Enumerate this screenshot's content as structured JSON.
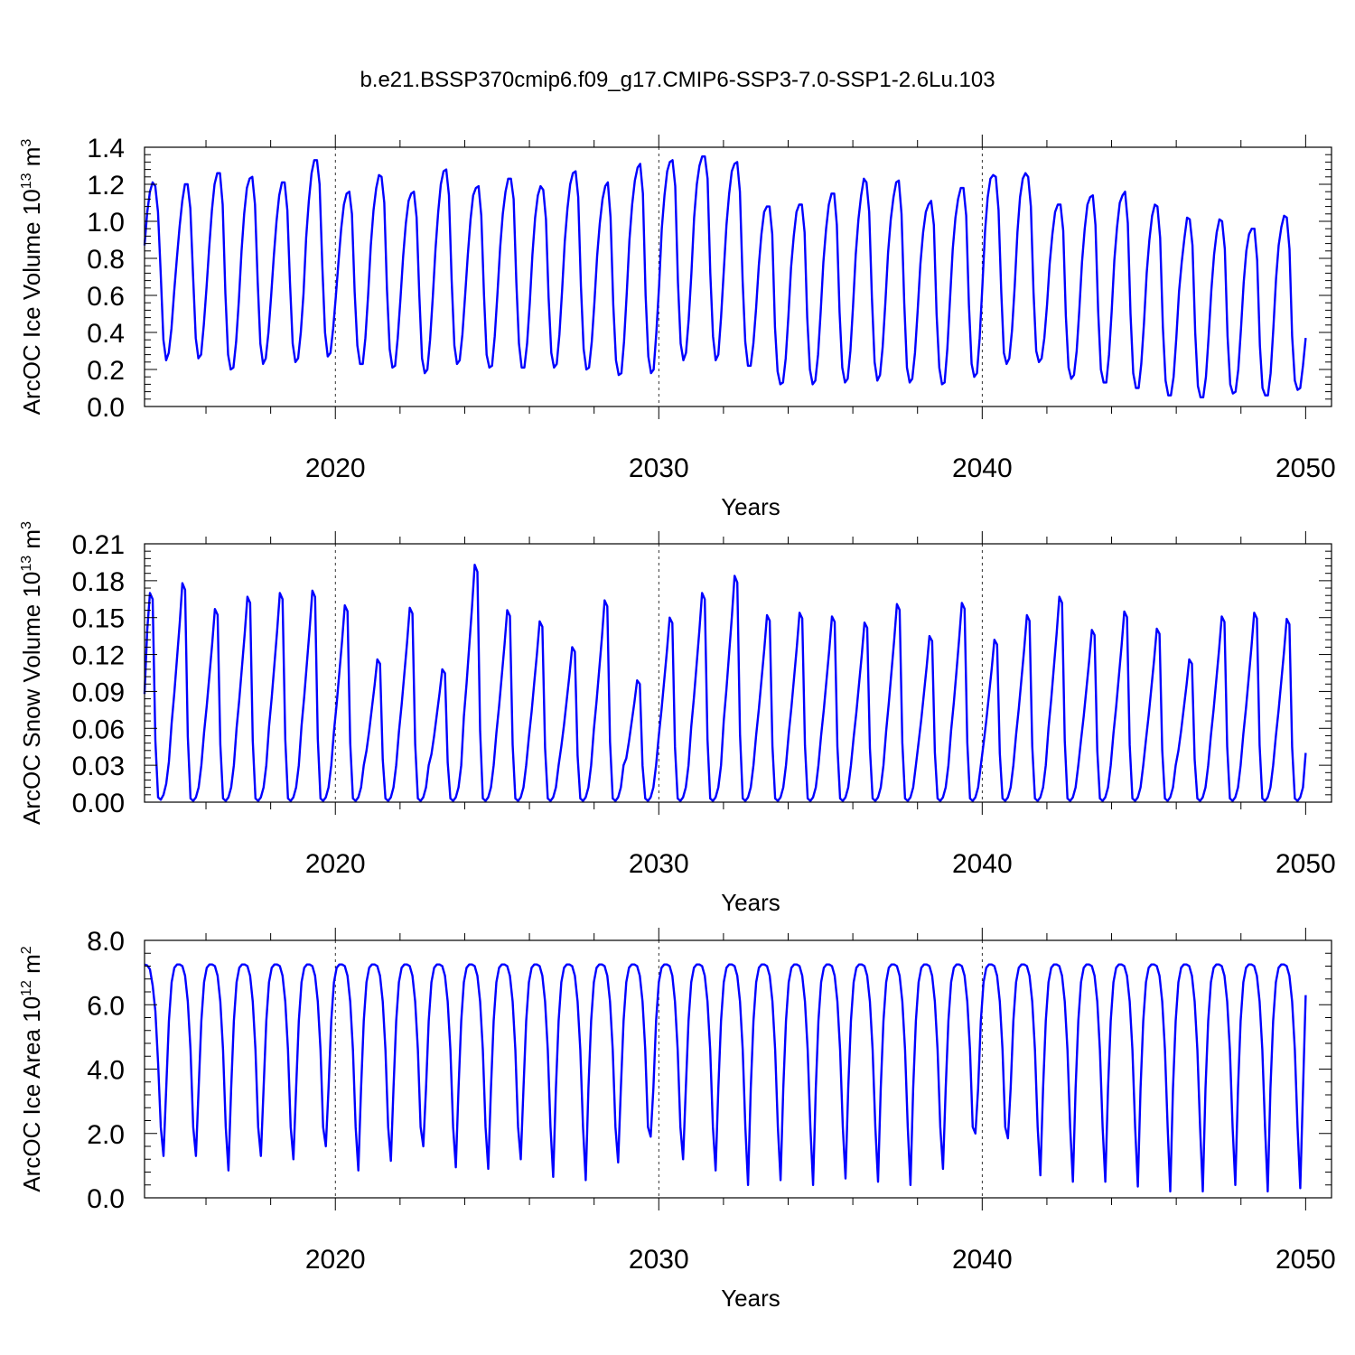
{
  "title": "b.e21.BSSP370cmip6.f09_g17.CMIP6-SSP3-7.0-SSP1-2.6Lu.103",
  "chart_data": [
    {
      "type": "line",
      "ylabel": "ArcOC Ice Volume",
      "ylabel_unit_base": "10",
      "ylabel_unit_exp": "13",
      "ylabel_unit_suffix": "m",
      "ylabel_unit_suffix_exp": "3",
      "xlabel": "Years",
      "xlim": [
        2014.1,
        2050.8
      ],
      "ylim": [
        0,
        1.4
      ],
      "yticks": [
        0.0,
        0.2,
        0.4,
        0.6,
        0.8,
        1.0,
        1.2,
        1.4
      ],
      "ytick_labels": [
        "0.0",
        "0.2",
        "0.4",
        "0.6",
        "0.8",
        "1.0",
        "1.2",
        "1.4"
      ],
      "xticks": [
        2020,
        2030,
        2040,
        2050
      ],
      "xtick_labels": [
        "2020",
        "2030",
        "2040",
        "2050"
      ],
      "ref_lines": [
        2020,
        2030,
        2040
      ],
      "x_start": 2014.1,
      "monthly_values": [
        0.87,
        1.05,
        1.16,
        1.21,
        1.19,
        1.05,
        0.72,
        0.36,
        0.25,
        0.29,
        0.42,
        0.62,
        0.8,
        0.97,
        1.11,
        1.2,
        1.2,
        1.07,
        0.71,
        0.37,
        0.26,
        0.28,
        0.44,
        0.64,
        0.86,
        1.06,
        1.2,
        1.26,
        1.26,
        1.09,
        0.61,
        0.28,
        0.2,
        0.21,
        0.35,
        0.57,
        0.84,
        1.04,
        1.18,
        1.23,
        1.24,
        1.09,
        0.67,
        0.34,
        0.23,
        0.26,
        0.4,
        0.6,
        0.81,
        1.0,
        1.14,
        1.21,
        1.21,
        1.06,
        0.67,
        0.34,
        0.24,
        0.26,
        0.4,
        0.61,
        0.91,
        1.11,
        1.26,
        1.33,
        1.33,
        1.2,
        0.76,
        0.4,
        0.27,
        0.29,
        0.42,
        0.59,
        0.78,
        0.96,
        1.09,
        1.15,
        1.16,
        1.04,
        0.62,
        0.33,
        0.23,
        0.23,
        0.37,
        0.6,
        0.87,
        1.06,
        1.18,
        1.25,
        1.24,
        1.1,
        0.63,
        0.31,
        0.21,
        0.22,
        0.37,
        0.58,
        0.81,
        0.99,
        1.11,
        1.15,
        1.16,
        1.02,
        0.6,
        0.26,
        0.18,
        0.2,
        0.36,
        0.59,
        0.85,
        1.05,
        1.2,
        1.27,
        1.28,
        1.14,
        0.68,
        0.33,
        0.23,
        0.25,
        0.39,
        0.6,
        0.82,
        1.01,
        1.14,
        1.18,
        1.19,
        1.03,
        0.6,
        0.28,
        0.21,
        0.22,
        0.38,
        0.61,
        0.86,
        1.04,
        1.16,
        1.23,
        1.23,
        1.12,
        0.67,
        0.34,
        0.21,
        0.21,
        0.34,
        0.56,
        0.82,
        1.02,
        1.14,
        1.19,
        1.17,
        1.01,
        0.59,
        0.29,
        0.21,
        0.23,
        0.39,
        0.63,
        0.89,
        1.07,
        1.2,
        1.26,
        1.27,
        1.13,
        0.65,
        0.31,
        0.2,
        0.21,
        0.35,
        0.56,
        0.81,
        0.99,
        1.12,
        1.19,
        1.21,
        1.02,
        0.55,
        0.25,
        0.17,
        0.18,
        0.35,
        0.61,
        0.9,
        1.09,
        1.22,
        1.29,
        1.31,
        1.15,
        0.6,
        0.27,
        0.18,
        0.2,
        0.4,
        0.65,
        0.96,
        1.14,
        1.27,
        1.32,
        1.33,
        1.19,
        0.67,
        0.34,
        0.25,
        0.29,
        0.47,
        0.72,
        1.02,
        1.2,
        1.3,
        1.35,
        1.35,
        1.23,
        0.72,
        0.38,
        0.25,
        0.28,
        0.48,
        0.73,
        0.98,
        1.15,
        1.27,
        1.31,
        1.32,
        1.16,
        0.68,
        0.35,
        0.22,
        0.22,
        0.34,
        0.53,
        0.76,
        0.93,
        1.05,
        1.08,
        1.08,
        0.93,
        0.43,
        0.19,
        0.12,
        0.13,
        0.26,
        0.49,
        0.75,
        0.92,
        1.05,
        1.09,
        1.09,
        0.94,
        0.48,
        0.2,
        0.12,
        0.14,
        0.28,
        0.51,
        0.78,
        0.96,
        1.09,
        1.15,
        1.15,
        0.98,
        0.51,
        0.21,
        0.13,
        0.15,
        0.3,
        0.54,
        0.82,
        1.01,
        1.14,
        1.23,
        1.21,
        1.05,
        0.59,
        0.24,
        0.14,
        0.17,
        0.32,
        0.56,
        0.83,
        1.01,
        1.13,
        1.21,
        1.22,
        1.04,
        0.56,
        0.21,
        0.13,
        0.15,
        0.29,
        0.52,
        0.77,
        0.94,
        1.05,
        1.09,
        1.11,
        0.98,
        0.5,
        0.21,
        0.12,
        0.13,
        0.31,
        0.58,
        0.85,
        1.02,
        1.12,
        1.18,
        1.18,
        1.03,
        0.55,
        0.23,
        0.16,
        0.18,
        0.37,
        0.65,
        0.95,
        1.13,
        1.23,
        1.25,
        1.24,
        1.06,
        0.62,
        0.29,
        0.23,
        0.26,
        0.41,
        0.65,
        0.94,
        1.13,
        1.23,
        1.26,
        1.24,
        1.08,
        0.62,
        0.3,
        0.24,
        0.26,
        0.37,
        0.55,
        0.77,
        0.93,
        1.05,
        1.09,
        1.09,
        0.95,
        0.49,
        0.21,
        0.15,
        0.17,
        0.3,
        0.52,
        0.78,
        0.96,
        1.09,
        1.13,
        1.14,
        0.98,
        0.51,
        0.2,
        0.13,
        0.13,
        0.28,
        0.51,
        0.79,
        0.97,
        1.1,
        1.14,
        1.16,
        0.99,
        0.5,
        0.18,
        0.1,
        0.1,
        0.23,
        0.45,
        0.72,
        0.9,
        1.03,
        1.09,
        1.08,
        0.91,
        0.43,
        0.14,
        0.06,
        0.06,
        0.16,
        0.37,
        0.62,
        0.78,
        0.91,
        1.02,
        1.01,
        0.87,
        0.4,
        0.11,
        0.05,
        0.05,
        0.16,
        0.38,
        0.63,
        0.82,
        0.94,
        1.01,
        1.0,
        0.85,
        0.38,
        0.12,
        0.07,
        0.08,
        0.2,
        0.42,
        0.67,
        0.84,
        0.93,
        0.96,
        0.96,
        0.79,
        0.33,
        0.1,
        0.06,
        0.06,
        0.18,
        0.42,
        0.69,
        0.87,
        0.97,
        1.03,
        1.02,
        0.85,
        0.38,
        0.14,
        0.09,
        0.1,
        0.22,
        0.37
      ]
    },
    {
      "type": "line",
      "ylabel": "ArcOC Snow Volume",
      "ylabel_unit_base": "10",
      "ylabel_unit_exp": "13",
      "ylabel_unit_suffix": "m",
      "ylabel_unit_suffix_exp": "3",
      "xlabel": "Years",
      "xlim": [
        2014.1,
        2050.8
      ],
      "ylim": [
        0,
        0.21
      ],
      "yticks": [
        0.0,
        0.03,
        0.06,
        0.09,
        0.12,
        0.15,
        0.18,
        0.21
      ],
      "ytick_labels": [
        "0.00",
        "0.03",
        "0.06",
        "0.09",
        "0.12",
        "0.15",
        "0.18",
        "0.21"
      ],
      "xticks": [
        2020,
        2030,
        2040,
        2050
      ],
      "xtick_labels": [
        "2020",
        "2030",
        "2040",
        "2050"
      ],
      "ref_lines": [
        2020,
        2030,
        2040
      ],
      "x_start": 2014.1,
      "peaks": [
        0.17,
        0.178,
        0.157,
        0.167,
        0.17,
        0.172,
        0.16,
        0.116,
        0.158,
        0.108,
        0.193,
        0.156,
        0.147,
        0.126,
        0.164,
        0.099,
        0.15,
        0.17,
        0.184,
        0.152,
        0.154,
        0.151,
        0.146,
        0.161,
        0.135,
        0.162,
        0.132,
        0.152,
        0.167,
        0.14,
        0.155,
        0.141,
        0.116,
        0.151,
        0.154,
        0.149
      ],
      "end_value": 0.04
    },
    {
      "type": "line",
      "ylabel": "ArcOC Ice Area",
      "ylabel_unit_base": "10",
      "ylabel_unit_exp": "12",
      "ylabel_unit_suffix": "m",
      "ylabel_unit_suffix_exp": "2",
      "xlabel": "Years",
      "xlim": [
        2014.1,
        2050.8
      ],
      "ylim": [
        0,
        8.0
      ],
      "yticks": [
        0.0,
        2.0,
        4.0,
        6.0,
        8.0
      ],
      "ytick_labels": [
        "0.0",
        "2.0",
        "4.0",
        "6.0",
        "8.0"
      ],
      "xticks": [
        2020,
        2030,
        2040,
        2050
      ],
      "xtick_labels": [
        "2020",
        "2030",
        "2040",
        "2050"
      ],
      "ref_lines": [
        2020,
        2030,
        2040
      ],
      "x_start": 2014.1,
      "minima": [
        1.3,
        1.3,
        0.85,
        1.3,
        1.2,
        1.6,
        0.85,
        1.15,
        1.6,
        0.95,
        0.9,
        1.2,
        0.65,
        0.55,
        1.1,
        1.9,
        1.2,
        0.85,
        0.4,
        0.55,
        0.4,
        0.6,
        0.5,
        0.4,
        0.9,
        2.0,
        1.85,
        0.7,
        0.5,
        0.5,
        0.35,
        0.2,
        0.2,
        0.4,
        0.2,
        0.3
      ],
      "max_value": 7.25,
      "end_value": 6.3
    }
  ]
}
